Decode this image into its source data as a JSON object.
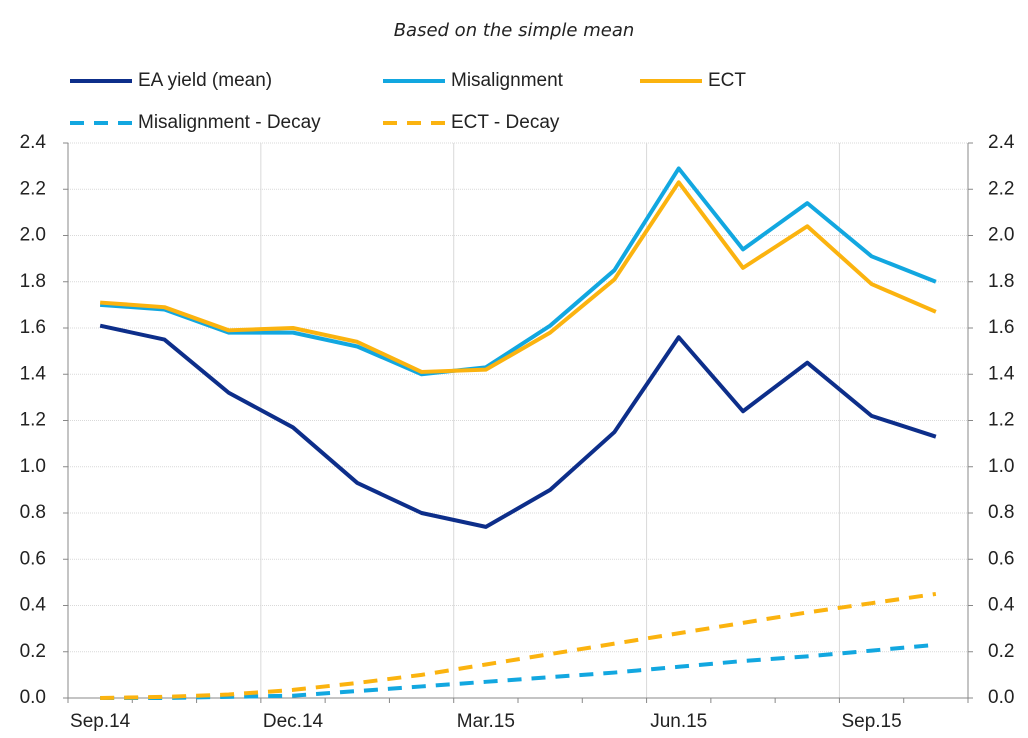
{
  "chart_data": {
    "type": "line",
    "title": "Based on the simple mean",
    "categories": [
      "Sep.14",
      null,
      null,
      "Dec.14",
      null,
      null,
      "Mar.15",
      null,
      null,
      "Jun.15",
      null,
      null,
      "Sep.15",
      null
    ],
    "series": [
      {
        "name": "EA yield (mean)",
        "color": "#0d2e8a",
        "style": "solid",
        "values": [
          1.61,
          1.55,
          1.32,
          1.17,
          0.93,
          0.8,
          0.74,
          0.9,
          1.15,
          1.56,
          1.24,
          1.45,
          1.22,
          1.13
        ]
      },
      {
        "name": "Misalignment",
        "color": "#12a7e0",
        "style": "solid",
        "values": [
          1.7,
          1.68,
          1.58,
          1.58,
          1.52,
          1.4,
          1.43,
          1.61,
          1.85,
          2.29,
          1.94,
          2.14,
          1.91,
          1.8
        ]
      },
      {
        "name": "ECT",
        "color": "#fbb30f",
        "style": "solid",
        "values": [
          1.71,
          1.69,
          1.59,
          1.6,
          1.54,
          1.41,
          1.42,
          1.58,
          1.81,
          2.23,
          1.86,
          2.04,
          1.79,
          1.67
        ]
      },
      {
        "name": "Misalignment - Decay",
        "color": "#12a7e0",
        "style": "dashed",
        "values": [
          0,
          0,
          0.005,
          0.01,
          0.03,
          0.05,
          0.07,
          0.09,
          0.11,
          0.135,
          0.16,
          0.18,
          0.205,
          0.23
        ]
      },
      {
        "name": "ECT - Decay",
        "color": "#fbb30f",
        "style": "dashed",
        "values": [
          0,
          0.005,
          0.015,
          0.035,
          0.065,
          0.1,
          0.145,
          0.19,
          0.235,
          0.28,
          0.325,
          0.37,
          0.41,
          0.45
        ]
      }
    ],
    "ylim": [
      0,
      2.4
    ],
    "yticks": [
      {
        "value": 0,
        "label": "0.0"
      },
      {
        "value": 0.2,
        "label": "0.2"
      },
      {
        "value": 0.4,
        "label": "0.4"
      },
      {
        "value": 0.6,
        "label": "0.6"
      },
      {
        "value": 0.8,
        "label": "0.8"
      },
      {
        "value": 1,
        "label": "1.0"
      },
      {
        "value": 1.2,
        "label": "1.2"
      },
      {
        "value": 1.4,
        "label": "1.4"
      },
      {
        "value": 1.6,
        "label": "1.6"
      },
      {
        "value": 1.8,
        "label": "1.8"
      },
      {
        "value": 2,
        "label": "2.0"
      },
      {
        "value": 2.2,
        "label": "2.2"
      },
      {
        "value": 2.4,
        "label": "2.4"
      }
    ],
    "y2lim": [
      0,
      2.4
    ],
    "y2ticks": [
      {
        "value": 0,
        "label": "0.0"
      },
      {
        "value": 0.2,
        "label": "0.2"
      },
      {
        "value": 0.4,
        "label": "0.4"
      },
      {
        "value": 0.6,
        "label": "0.6"
      },
      {
        "value": 0.8,
        "label": "0.8"
      },
      {
        "value": 1,
        "label": "1.0"
      },
      {
        "value": 1.2,
        "label": "1.2"
      },
      {
        "value": 1.4,
        "label": "1.4"
      },
      {
        "value": 1.6,
        "label": "1.6"
      },
      {
        "value": 1.8,
        "label": "1.8"
      },
      {
        "value": 2,
        "label": "2.0"
      },
      {
        "value": 2.2,
        "label": "2.2"
      },
      {
        "value": 2.4,
        "label": "2.4"
      }
    ],
    "grid": true
  }
}
